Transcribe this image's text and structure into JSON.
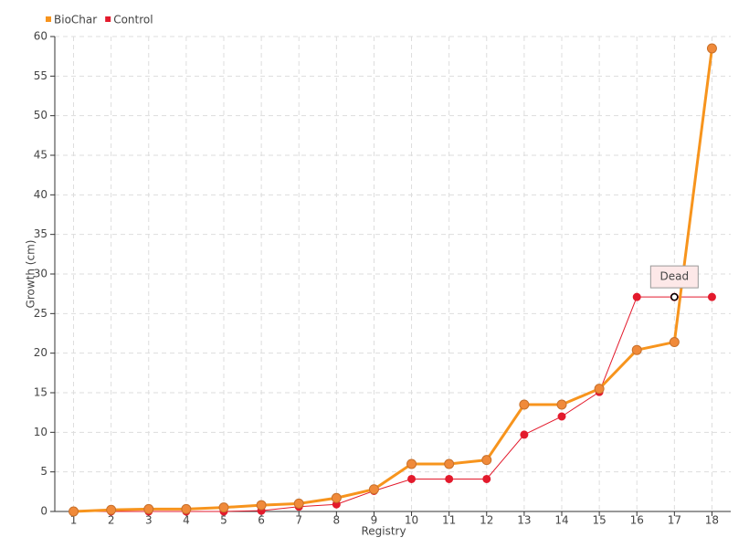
{
  "chart_data": {
    "type": "line",
    "x": [
      1,
      2,
      3,
      4,
      5,
      6,
      7,
      8,
      9,
      10,
      11,
      12,
      13,
      14,
      15,
      16,
      17,
      18
    ],
    "xlabel": "Registry",
    "ylabel": "Growth (cm)",
    "xlim": [
      0.5,
      18.5
    ],
    "xticks": [
      1,
      2,
      3,
      4,
      5,
      6,
      7,
      8,
      9,
      10,
      11,
      12,
      13,
      14,
      15,
      16,
      17,
      18
    ],
    "ylim": [
      0,
      60
    ],
    "yticks": [
      0,
      5,
      10,
      15,
      20,
      25,
      30,
      35,
      40,
      45,
      50,
      55,
      60
    ],
    "grid": true,
    "legend": "top-left",
    "series": [
      {
        "name": "BioChar",
        "color": "#f7941d",
        "values": [
          0,
          0.2,
          0.3,
          0.3,
          0.5,
          0.8,
          1.0,
          1.7,
          2.8,
          6.0,
          6.0,
          6.5,
          13.5,
          13.5,
          15.5,
          20.4,
          21.4,
          58.5
        ]
      },
      {
        "name": "Control",
        "color": "#e31a2c",
        "values": [
          0,
          0,
          0,
          0,
          0,
          0.1,
          0.6,
          0.9,
          2.6,
          4.1,
          4.1,
          4.1,
          9.7,
          12.0,
          15.1,
          27.1,
          27.1,
          27.1
        ]
      }
    ],
    "annotations": [
      {
        "label": "Dead",
        "x": 17,
        "y": 27.1
      }
    ]
  }
}
